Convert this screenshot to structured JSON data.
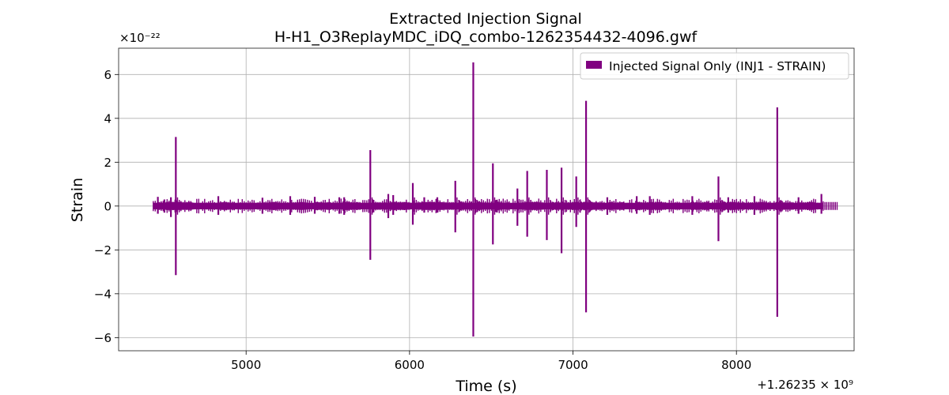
{
  "chart_data": {
    "type": "line",
    "title": "Extracted Injection Signal",
    "subtitle": "H-H1_O3ReplayMDC_iDQ_combo-1262354432-4096.gwf",
    "xlabel": "Time (s)",
    "ylabel": "Strain",
    "y_scale_label": "×10⁻²²",
    "x_offset_label": "+1.26235 × 10⁹",
    "xlim": [
      4220,
      8720
    ],
    "ylim": [
      -6.6,
      7.2
    ],
    "x_ticks": [
      5000,
      6000,
      7000,
      8000
    ],
    "x_tick_labels": [
      "5000",
      "6000",
      "7000",
      "8000"
    ],
    "y_ticks": [
      6,
      4,
      2,
      0,
      -2,
      -4,
      -6
    ],
    "y_tick_labels": [
      "6",
      "4",
      "2",
      "0",
      "−2",
      "−4",
      "−6"
    ],
    "grid": true,
    "legend_position": "top-right",
    "series": [
      {
        "name": "Injected Signal Only (INJ1 - STRAIN)",
        "color": "#800080",
        "x_range": [
          4432,
          8528
        ],
        "noise_band": 0.15,
        "spikes": [
          {
            "x": 4460,
            "hi": 0.42,
            "lo": -0.35
          },
          {
            "x": 4500,
            "hi": 0.3,
            "lo": -0.3
          },
          {
            "x": 4540,
            "hi": 0.4,
            "lo": -0.5
          },
          {
            "x": 4570,
            "hi": 3.15,
            "lo": -3.15
          },
          {
            "x": 4830,
            "hi": 0.45,
            "lo": -0.4
          },
          {
            "x": 5100,
            "hi": 0.38,
            "lo": -0.35
          },
          {
            "x": 5270,
            "hi": 0.45,
            "lo": -0.4
          },
          {
            "x": 5420,
            "hi": 0.42,
            "lo": -0.35
          },
          {
            "x": 5570,
            "hi": 0.4,
            "lo": -0.35
          },
          {
            "x": 5600,
            "hi": 0.4,
            "lo": -0.4
          },
          {
            "x": 5760,
            "hi": 2.55,
            "lo": -2.45
          },
          {
            "x": 5870,
            "hi": 0.55,
            "lo": -0.55
          },
          {
            "x": 5900,
            "hi": 0.5,
            "lo": -0.4
          },
          {
            "x": 6020,
            "hi": 1.05,
            "lo": -0.85
          },
          {
            "x": 6090,
            "hi": 0.4,
            "lo": -0.3
          },
          {
            "x": 6170,
            "hi": 0.4,
            "lo": -0.3
          },
          {
            "x": 6280,
            "hi": 1.15,
            "lo": -1.2
          },
          {
            "x": 6390,
            "hi": 6.55,
            "lo": -5.95
          },
          {
            "x": 6510,
            "hi": 1.95,
            "lo": -1.75
          },
          {
            "x": 6660,
            "hi": 0.8,
            "lo": -0.9
          },
          {
            "x": 6720,
            "hi": 1.6,
            "lo": -1.4
          },
          {
            "x": 6840,
            "hi": 1.65,
            "lo": -1.55
          },
          {
            "x": 6930,
            "hi": 1.75,
            "lo": -2.15
          },
          {
            "x": 7020,
            "hi": 1.35,
            "lo": -0.95
          },
          {
            "x": 7080,
            "hi": 4.8,
            "lo": -4.85
          },
          {
            "x": 7210,
            "hi": 0.4,
            "lo": -0.4
          },
          {
            "x": 7390,
            "hi": 0.45,
            "lo": -0.35
          },
          {
            "x": 7470,
            "hi": 0.45,
            "lo": -0.4
          },
          {
            "x": 7730,
            "hi": 0.45,
            "lo": -0.4
          },
          {
            "x": 7890,
            "hi": 1.35,
            "lo": -1.6
          },
          {
            "x": 7950,
            "hi": 0.4,
            "lo": -0.3
          },
          {
            "x": 8110,
            "hi": 0.45,
            "lo": -0.4
          },
          {
            "x": 8250,
            "hi": 4.5,
            "lo": -5.05
          },
          {
            "x": 8380,
            "hi": 0.4,
            "lo": -0.35
          },
          {
            "x": 8520,
            "hi": 0.55,
            "lo": -0.35
          }
        ]
      }
    ]
  }
}
